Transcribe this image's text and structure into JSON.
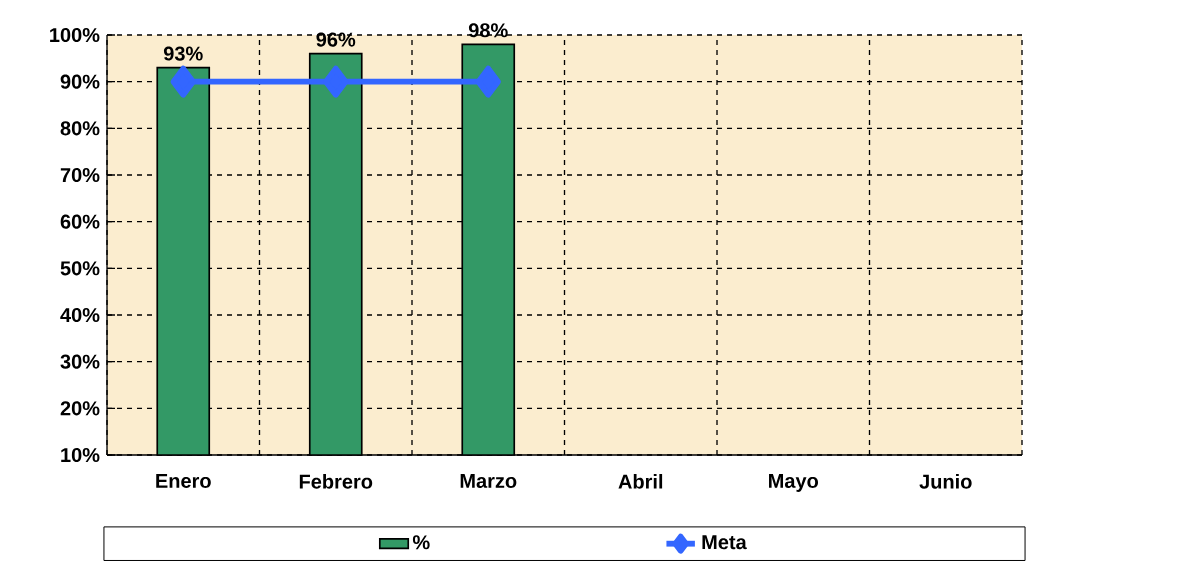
{
  "chart_data": {
    "type": "bar",
    "categories": [
      "Enero",
      "Febrero",
      "Marzo",
      "Abril",
      "Mayo",
      "Junio"
    ],
    "series": [
      {
        "name": "%",
        "color": "#339966",
        "values": [
          93,
          96,
          98,
          null,
          null,
          null
        ],
        "value_labels": [
          "93%",
          "96%",
          "98%",
          null,
          null,
          null
        ]
      },
      {
        "name": "Meta",
        "type": "line",
        "color": "#3366ff",
        "values": [
          90,
          90,
          90,
          null,
          null,
          null
        ]
      }
    ],
    "ylim": [
      10,
      100
    ],
    "yticks": [
      {
        "value": 10,
        "label": "10%"
      },
      {
        "value": 20,
        "label": "20%"
      },
      {
        "value": 30,
        "label": "30%"
      },
      {
        "value": 40,
        "label": "40%"
      },
      {
        "value": 50,
        "label": "50%"
      },
      {
        "value": 60,
        "label": "60%"
      },
      {
        "value": 70,
        "label": "70%"
      },
      {
        "value": 80,
        "label": "80%"
      },
      {
        "value": 90,
        "label": "90%"
      },
      {
        "value": 100,
        "label": "100%"
      }
    ],
    "grid": true,
    "legend": "bottom",
    "marker": "diamond",
    "line_style": "solid"
  }
}
